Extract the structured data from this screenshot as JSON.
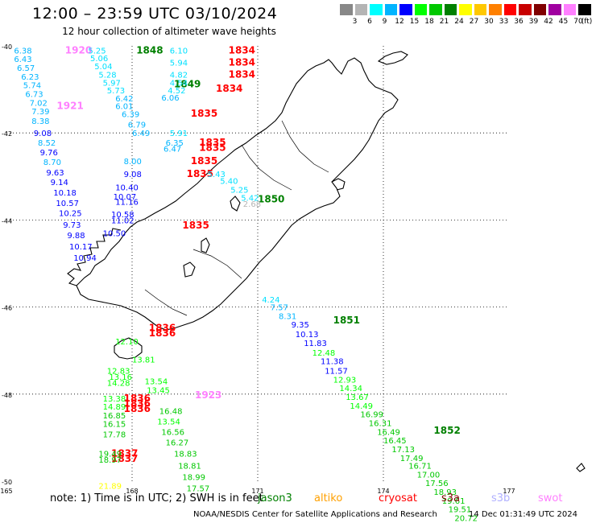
{
  "title": "12:00 – 23:59 UTC 03/10/2024",
  "subtitle": "12 hour collection of altimeter wave heights",
  "legend": {
    "unit": "(ft)",
    "bins": [
      {
        "label": "",
        "color": "#888888"
      },
      {
        "label": "3",
        "color": "#b4b4b4"
      },
      {
        "label": "6",
        "color": "#00ffff"
      },
      {
        "label": "9",
        "color": "#00b4ff"
      },
      {
        "label": "12",
        "color": "#0000ff"
      },
      {
        "label": "15",
        "color": "#00ff00"
      },
      {
        "label": "18",
        "color": "#00c800"
      },
      {
        "label": "21",
        "color": "#008000"
      },
      {
        "label": "24",
        "color": "#ffff00"
      },
      {
        "label": "27",
        "color": "#ffc800"
      },
      {
        "label": "30",
        "color": "#ff8000"
      },
      {
        "label": "33",
        "color": "#ff0000"
      },
      {
        "label": "36",
        "color": "#c80000"
      },
      {
        "label": "39",
        "color": "#800000"
      },
      {
        "label": "42",
        "color": "#a000a0"
      },
      {
        "label": "45",
        "color": "#ff80ff"
      },
      {
        "label": "70",
        "color": "#000000"
      }
    ]
  },
  "axes": {
    "lat_labels": [
      "-40",
      "-42",
      "-44",
      "-46",
      "-48",
      "-50"
    ],
    "lon_labels": [
      "165",
      "168",
      "171",
      "174",
      "177"
    ]
  },
  "note": {
    "text": "note:  1) Time is in UTC;  2) SWH is in feet",
    "satellites": [
      {
        "name": "jason3",
        "color": "#008000"
      },
      {
        "name": "altiko",
        "color": "#ffa000"
      },
      {
        "name": "cryosat",
        "color": "#ff0000"
      },
      {
        "name": "s3a",
        "color": "#800000"
      },
      {
        "name": "s3b",
        "color": "#b0b0ff"
      },
      {
        "name": "swot",
        "color": "#ff80ff"
      }
    ]
  },
  "footer": {
    "credit": "NOAA/NESDIS Center for Satellite Applications and Research",
    "timestamp": "14 Dec 01:31:49 UTC 2024"
  },
  "time_labels": [
    {
      "text": "1920",
      "color": "#ff80ff",
      "lon": 166.4,
      "lat": -40.1
    },
    {
      "text": "1848",
      "color": "#008000",
      "lon": 168.1,
      "lat": -40.1
    },
    {
      "text": "1834",
      "color": "#ff0000",
      "lon": 170.3,
      "lat": -40.1
    },
    {
      "text": "1834",
      "color": "#ff0000",
      "lon": 170.3,
      "lat": -40.38
    },
    {
      "text": "1834",
      "color": "#ff0000",
      "lon": 170.3,
      "lat": -40.66
    },
    {
      "text": "1849",
      "color": "#008000",
      "lon": 169.0,
      "lat": -40.88
    },
    {
      "text": "1834",
      "color": "#ff0000",
      "lon": 170.0,
      "lat": -40.98
    },
    {
      "text": "1921",
      "color": "#ff80ff",
      "lon": 166.2,
      "lat": -41.38
    },
    {
      "text": "1835",
      "color": "#ff0000",
      "lon": 169.4,
      "lat": -41.55
    },
    {
      "text": "1835",
      "color": "#ff0000",
      "lon": 169.6,
      "lat": -42.22
    },
    {
      "text": "1835",
      "color": "#ff0000",
      "lon": 169.6,
      "lat": -42.34
    },
    {
      "text": "1835",
      "color": "#ff0000",
      "lon": 169.4,
      "lat": -42.64
    },
    {
      "text": "1835",
      "color": "#ff0000",
      "lon": 169.3,
      "lat": -42.94
    },
    {
      "text": "1850",
      "color": "#008000",
      "lon": 171.0,
      "lat": -43.52
    },
    {
      "text": "1835",
      "color": "#ff0000",
      "lon": 169.2,
      "lat": -44.12
    },
    {
      "text": "1851",
      "color": "#008000",
      "lon": 172.8,
      "lat": -46.3
    },
    {
      "text": "1836",
      "color": "#ff0000",
      "lon": 168.4,
      "lat": -46.48
    },
    {
      "text": "1836",
      "color": "#ff0000",
      "lon": 168.4,
      "lat": -46.6
    },
    {
      "text": "1923",
      "color": "#ff80ff",
      "lon": 169.5,
      "lat": -48.02
    },
    {
      "text": "1836",
      "color": "#ff0000",
      "lon": 167.8,
      "lat": -48.1
    },
    {
      "text": "1836",
      "color": "#ff0000",
      "lon": 167.8,
      "lat": -48.22
    },
    {
      "text": "1836",
      "color": "#ff0000",
      "lon": 167.8,
      "lat": -48.34
    },
    {
      "text": "1852",
      "color": "#008000",
      "lon": 175.2,
      "lat": -48.84
    },
    {
      "text": "1837",
      "color": "#ff0000",
      "lon": 167.5,
      "lat": -49.36
    },
    {
      "text": "1837",
      "color": "#ff0000",
      "lon": 167.5,
      "lat": -49.48
    }
  ],
  "swh_values": [
    {
      "text": "6.38",
      "color": "#00b4ff",
      "lon": 165.18,
      "lat": -40.1
    },
    {
      "text": "6.43",
      "color": "#00b4ff",
      "lon": 165.18,
      "lat": -40.3
    },
    {
      "text": "6.57",
      "color": "#00b4ff",
      "lon": 165.25,
      "lat": -40.5
    },
    {
      "text": "6.23",
      "color": "#00b4ff",
      "lon": 165.35,
      "lat": -40.7
    },
    {
      "text": "5.74",
      "color": "#00b4ff",
      "lon": 165.4,
      "lat": -40.9
    },
    {
      "text": "6.73",
      "color": "#00b4ff",
      "lon": 165.45,
      "lat": -41.1
    },
    {
      "text": "7.02",
      "color": "#00b4ff",
      "lon": 165.55,
      "lat": -41.3
    },
    {
      "text": "7.39",
      "color": "#00b4ff",
      "lon": 165.6,
      "lat": -41.5
    },
    {
      "text": "8.38",
      "color": "#00b4ff",
      "lon": 165.6,
      "lat": -41.72
    },
    {
      "text": "9.08",
      "color": "#0000ff",
      "lon": 165.65,
      "lat": -42.0
    },
    {
      "text": "8.52",
      "color": "#00b4ff",
      "lon": 165.75,
      "lat": -42.22
    },
    {
      "text": "9.76",
      "color": "#0000ff",
      "lon": 165.8,
      "lat": -42.44
    },
    {
      "text": "8.70",
      "color": "#00b4ff",
      "lon": 165.88,
      "lat": -42.66
    },
    {
      "text": "9.63",
      "color": "#0000ff",
      "lon": 165.95,
      "lat": -42.9
    },
    {
      "text": "9.14",
      "color": "#0000ff",
      "lon": 166.05,
      "lat": -43.12
    },
    {
      "text": "10.18",
      "color": "#0000ff",
      "lon": 166.12,
      "lat": -43.36
    },
    {
      "text": "10.57",
      "color": "#0000ff",
      "lon": 166.18,
      "lat": -43.6
    },
    {
      "text": "10.25",
      "color": "#0000ff",
      "lon": 166.25,
      "lat": -43.84
    },
    {
      "text": "9.73",
      "color": "#0000ff",
      "lon": 166.35,
      "lat": -44.1
    },
    {
      "text": "9.88",
      "color": "#0000ff",
      "lon": 166.45,
      "lat": -44.34
    },
    {
      "text": "10.17",
      "color": "#0000ff",
      "lon": 166.5,
      "lat": -44.6
    },
    {
      "text": "10.94",
      "color": "#0000ff",
      "lon": 166.6,
      "lat": -44.86
    },
    {
      "text": "5.25",
      "color": "#00e0ff",
      "lon": 166.95,
      "lat": -40.1
    },
    {
      "text": "5.06",
      "color": "#00e0ff",
      "lon": 167.0,
      "lat": -40.28
    },
    {
      "text": "5.04",
      "color": "#00e0ff",
      "lon": 167.1,
      "lat": -40.46
    },
    {
      "text": "5.28",
      "color": "#00e0ff",
      "lon": 167.2,
      "lat": -40.66
    },
    {
      "text": "5.97",
      "color": "#00e0ff",
      "lon": 167.3,
      "lat": -40.84
    },
    {
      "text": "5.73",
      "color": "#00e0ff",
      "lon": 167.4,
      "lat": -41.02
    },
    {
      "text": "6.42",
      "color": "#00b4ff",
      "lon": 167.6,
      "lat": -41.2
    },
    {
      "text": "6.01",
      "color": "#00b4ff",
      "lon": 167.6,
      "lat": -41.38
    },
    {
      "text": "6.39",
      "color": "#00b4ff",
      "lon": 167.75,
      "lat": -41.56
    },
    {
      "text": "6.79",
      "color": "#00b4ff",
      "lon": 167.9,
      "lat": -41.8
    },
    {
      "text": "6.49",
      "color": "#00b4ff",
      "lon": 168.0,
      "lat": -42.0
    },
    {
      "text": "8.00",
      "color": "#00b4ff",
      "lon": 167.8,
      "lat": -42.64
    },
    {
      "text": "9.08",
      "color": "#0000ff",
      "lon": 167.8,
      "lat": -42.94
    },
    {
      "text": "10.40",
      "color": "#0000ff",
      "lon": 167.6,
      "lat": -43.24
    },
    {
      "text": "10.07",
      "color": "#0000ff",
      "lon": 167.55,
      "lat": -43.46
    },
    {
      "text": "11.16",
      "color": "#0000ff",
      "lon": 167.6,
      "lat": -43.58
    },
    {
      "text": "10.58",
      "color": "#0000ff",
      "lon": 167.5,
      "lat": -43.86
    },
    {
      "text": "11.02",
      "color": "#0000ff",
      "lon": 167.5,
      "lat": -44.0
    },
    {
      "text": "10.50",
      "color": "#0000ff",
      "lon": 167.3,
      "lat": -44.3
    },
    {
      "text": "6.10",
      "color": "#00e0ff",
      "lon": 168.9,
      "lat": -40.1
    },
    {
      "text": "5.94",
      "color": "#00e0ff",
      "lon": 168.9,
      "lat": -40.38
    },
    {
      "text": "4.82",
      "color": "#00e0ff",
      "lon": 168.9,
      "lat": -40.66
    },
    {
      "text": "4.54",
      "color": "#00e0ff",
      "lon": 168.9,
      "lat": -40.84
    },
    {
      "text": "4.52",
      "color": "#00e0ff",
      "lon": 168.85,
      "lat": -41.02
    },
    {
      "text": "6.06",
      "color": "#00b4ff",
      "lon": 168.7,
      "lat": -41.18
    },
    {
      "text": "5.91",
      "color": "#00e0ff",
      "lon": 168.9,
      "lat": -42.0
    },
    {
      "text": "6.35",
      "color": "#00b4ff",
      "lon": 168.8,
      "lat": -42.22
    },
    {
      "text": "6.47",
      "color": "#00b4ff",
      "lon": 168.75,
      "lat": -42.36
    },
    {
      "text": "5.43",
      "color": "#00e0ff",
      "lon": 169.8,
      "lat": -42.94
    },
    {
      "text": "5.40",
      "color": "#00e0ff",
      "lon": 170.1,
      "lat": -43.1
    },
    {
      "text": "5.25",
      "color": "#00e0ff",
      "lon": 170.35,
      "lat": -43.3
    },
    {
      "text": "5.42",
      "color": "#00e0ff",
      "lon": 170.6,
      "lat": -43.48
    },
    {
      "text": "2.68",
      "color": "#b4b4b4",
      "lon": 170.65,
      "lat": -43.62
    },
    {
      "text": "4.24",
      "color": "#00e0ff",
      "lon": 171.1,
      "lat": -45.82
    },
    {
      "text": "7.57",
      "color": "#00b4ff",
      "lon": 171.3,
      "lat": -46.0
    },
    {
      "text": "8.31",
      "color": "#00b4ff",
      "lon": 171.5,
      "lat": -46.2
    },
    {
      "text": "9.35",
      "color": "#0000ff",
      "lon": 171.8,
      "lat": -46.4
    },
    {
      "text": "10.13",
      "color": "#0000ff",
      "lon": 171.9,
      "lat": -46.62
    },
    {
      "text": "11.83",
      "color": "#0000ff",
      "lon": 172.1,
      "lat": -46.82
    },
    {
      "text": "12.48",
      "color": "#00ff00",
      "lon": 172.3,
      "lat": -47.04
    },
    {
      "text": "11.38",
      "color": "#0000ff",
      "lon": 172.5,
      "lat": -47.24
    },
    {
      "text": "11.57",
      "color": "#0000ff",
      "lon": 172.6,
      "lat": -47.46
    },
    {
      "text": "12.93",
      "color": "#00ff00",
      "lon": 172.8,
      "lat": -47.66
    },
    {
      "text": "14.34",
      "color": "#00ff00",
      "lon": 172.95,
      "lat": -47.86
    },
    {
      "text": "13.67",
      "color": "#00ff00",
      "lon": 173.1,
      "lat": -48.06
    },
    {
      "text": "14.49",
      "color": "#00ff00",
      "lon": 173.2,
      "lat": -48.26
    },
    {
      "text": "16.99",
      "color": "#00c800",
      "lon": 173.45,
      "lat": -48.46
    },
    {
      "text": "16.31",
      "color": "#00c800",
      "lon": 173.65,
      "lat": -48.66
    },
    {
      "text": "16.49",
      "color": "#00c800",
      "lon": 173.85,
      "lat": -48.86
    },
    {
      "text": "16.45",
      "color": "#00c800",
      "lon": 174.0,
      "lat": -49.06
    },
    {
      "text": "17.13",
      "color": "#00c800",
      "lon": 174.2,
      "lat": -49.26
    },
    {
      "text": "17.49",
      "color": "#00c800",
      "lon": 174.4,
      "lat": -49.46
    },
    {
      "text": "16.71",
      "color": "#00c800",
      "lon": 174.6,
      "lat": -49.64
    },
    {
      "text": "17.00",
      "color": "#00c800",
      "lon": 174.8,
      "lat": -49.84
    },
    {
      "text": "17.56",
      "color": "#00c800",
      "lon": 175.0,
      "lat": -50.04
    },
    {
      "text": "18.93",
      "color": "#00c800",
      "lon": 175.2,
      "lat": -50.24
    },
    {
      "text": "19.61",
      "color": "#00c800",
      "lon": 175.4,
      "lat": -50.44
    },
    {
      "text": "19.51",
      "color": "#00c800",
      "lon": 175.55,
      "lat": -50.64
    },
    {
      "text": "20.72",
      "color": "#00c800",
      "lon": 175.7,
      "lat": -50.84
    },
    {
      "text": "12.10",
      "color": "#00ff00",
      "lon": 167.6,
      "lat": -46.78
    },
    {
      "text": "13.81",
      "color": "#00ff00",
      "lon": 168.0,
      "lat": -47.2
    },
    {
      "text": "12.83",
      "color": "#00ff00",
      "lon": 167.4,
      "lat": -47.46
    },
    {
      "text": "13.16",
      "color": "#00ff00",
      "lon": 167.45,
      "lat": -47.6
    },
    {
      "text": "14.28",
      "color": "#00ff00",
      "lon": 167.4,
      "lat": -47.74
    },
    {
      "text": "13.54",
      "color": "#00ff00",
      "lon": 168.3,
      "lat": -47.7
    },
    {
      "text": "13.45",
      "color": "#00ff00",
      "lon": 168.35,
      "lat": -47.9
    },
    {
      "text": "13.38",
      "color": "#00ff00",
      "lon": 167.3,
      "lat": -48.1
    },
    {
      "text": "14.89",
      "color": "#00ff00",
      "lon": 167.3,
      "lat": -48.28
    },
    {
      "text": "16.85",
      "color": "#00c800",
      "lon": 167.3,
      "lat": -48.48
    },
    {
      "text": "16.15",
      "color": "#00c800",
      "lon": 167.3,
      "lat": -48.68
    },
    {
      "text": "17.78",
      "color": "#00c800",
      "lon": 167.3,
      "lat": -48.92
    },
    {
      "text": "16.48",
      "color": "#00c800",
      "lon": 168.65,
      "lat": -48.38
    },
    {
      "text": "13.54",
      "color": "#00ff00",
      "lon": 168.6,
      "lat": -48.62
    },
    {
      "text": "16.56",
      "color": "#00c800",
      "lon": 168.7,
      "lat": -48.86
    },
    {
      "text": "16.27",
      "color": "#00c800",
      "lon": 168.8,
      "lat": -49.1
    },
    {
      "text": "18.83",
      "color": "#00c800",
      "lon": 169.0,
      "lat": -49.36
    },
    {
      "text": "18.81",
      "color": "#00c800",
      "lon": 169.1,
      "lat": -49.64
    },
    {
      "text": "18.99",
      "color": "#00c800",
      "lon": 169.2,
      "lat": -49.9
    },
    {
      "text": "17.57",
      "color": "#00c800",
      "lon": 169.3,
      "lat": -50.16
    },
    {
      "text": "19.49",
      "color": "#00c800",
      "lon": 167.2,
      "lat": -49.36
    },
    {
      "text": "18.97",
      "color": "#00c800",
      "lon": 167.2,
      "lat": -49.5
    },
    {
      "text": "21.89",
      "color": "#ffff00",
      "lon": 167.2,
      "lat": -50.1
    }
  ]
}
